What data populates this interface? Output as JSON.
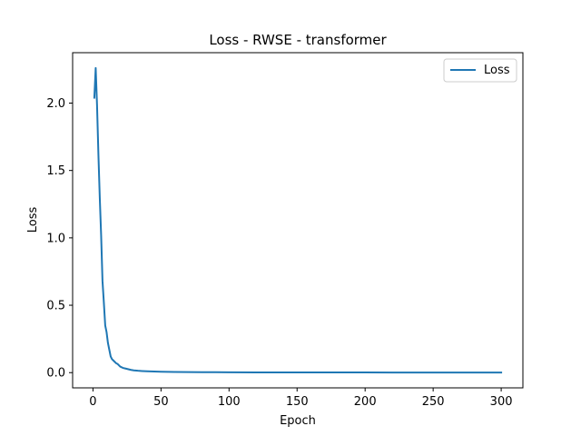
{
  "colors": {
    "series": "#1f77b4",
    "axes": "#000000",
    "background": "#ffffff",
    "legend_border": "#cccccc"
  },
  "chart_data": {
    "type": "line",
    "title": "Loss - RWSE - transformer",
    "xlabel": "Epoch",
    "ylabel": "Loss",
    "xlim": [
      -14.95,
      315.95
    ],
    "ylim": [
      -0.113,
      2.374
    ],
    "xticks": [
      0,
      50,
      100,
      150,
      200,
      250,
      300
    ],
    "yticks": [
      0.0,
      0.5,
      1.0,
      1.5,
      2.0
    ],
    "ytick_labels": [
      "0.0",
      "0.5",
      "1.0",
      "1.5",
      "2.0"
    ],
    "grid": false,
    "legend_position": "top-right",
    "series": [
      {
        "name": "Loss",
        "x": [
          1,
          2,
          3,
          4,
          5,
          6,
          7,
          8,
          9,
          10,
          11,
          12,
          13,
          14,
          15,
          16,
          17,
          18,
          19,
          20,
          22,
          24,
          26,
          28,
          30,
          33,
          36,
          40,
          45,
          50,
          60,
          70,
          80,
          90,
          100,
          120,
          140,
          160,
          180,
          200,
          220,
          240,
          260,
          280,
          300
        ],
        "y": [
          2.04,
          2.26,
          1.98,
          1.62,
          1.3,
          1.02,
          0.68,
          0.52,
          0.35,
          0.3,
          0.22,
          0.17,
          0.12,
          0.1,
          0.09,
          0.08,
          0.07,
          0.065,
          0.055,
          0.045,
          0.035,
          0.03,
          0.025,
          0.02,
          0.017,
          0.014,
          0.012,
          0.01,
          0.008,
          0.007,
          0.005,
          0.004,
          0.0035,
          0.003,
          0.0025,
          0.002,
          0.0018,
          0.0016,
          0.0014,
          0.0012,
          0.0011,
          0.001,
          0.001,
          0.0009,
          0.0008
        ]
      }
    ]
  }
}
